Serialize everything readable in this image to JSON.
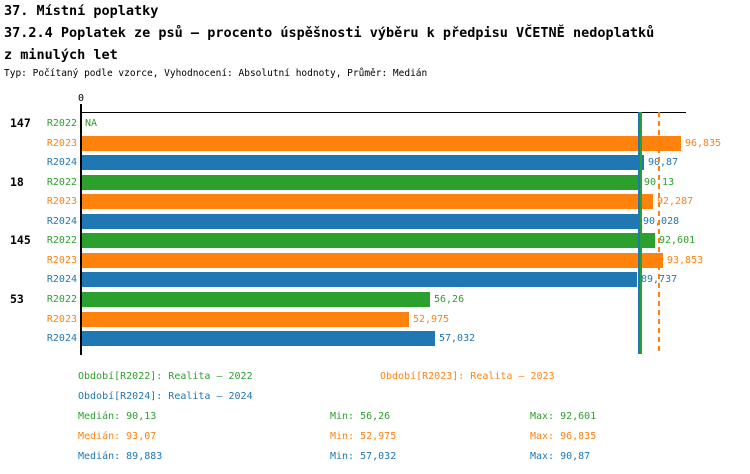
{
  "header": {
    "title_line1": "37. Místní poplatky",
    "title_line2": "37.2.4 Poplatek ze psů – procento úspěšnosti výběru k předpisu VČETNĚ nedoplatků",
    "title_line3": "z minulých let",
    "subtitle": "Typ: Počítaný podle vzorce, Vyhodnocení: Absolutní hodnoty, Průměr: Medián"
  },
  "colors": {
    "R2022": "#2ca02c",
    "R2023": "#ff820d",
    "R2024": "#1f77b4",
    "axis": "#000000"
  },
  "chart_data": {
    "type": "bar",
    "orientation": "horizontal",
    "title": "37.2.4 Poplatek ze psů – procento úspěšnosti výběru k předpisu VČETNĚ nedoplatků z minulých let",
    "x_axis": {
      "origin_tick_label": "0",
      "min": 0,
      "max": 97.6,
      "grid": false
    },
    "series": [
      "R2022",
      "R2023",
      "R2024"
    ],
    "groups": [
      {
        "label": "147",
        "values": [
          null,
          96.835,
          90.87
        ],
        "value_labels": [
          "NA",
          "96,835",
          "90,87"
        ]
      },
      {
        "label": "18",
        "values": [
          90.13,
          92.287,
          90.028
        ],
        "value_labels": [
          "90,13",
          "92,287",
          "90,028"
        ]
      },
      {
        "label": "145",
        "values": [
          92.601,
          93.853,
          89.737
        ],
        "value_labels": [
          "92,601",
          "93,853",
          "89,737"
        ]
      },
      {
        "label": "53",
        "values": [
          56.26,
          52.975,
          57.032
        ],
        "value_labels": [
          "56,26",
          "52,975",
          "57,032"
        ]
      }
    ],
    "median_lines": [
      {
        "series": "R2022",
        "value": 90.13,
        "style": "solid"
      },
      {
        "series": "R2023",
        "value": 93.07,
        "style": "dashed"
      },
      {
        "series": "R2024",
        "value": 89.883,
        "style": "solid"
      }
    ],
    "summary": {
      "R2022": {
        "median": 90.13,
        "min": 56.26,
        "max": 92.601
      },
      "R2023": {
        "median": 93.07,
        "min": 52.975,
        "max": 96.835
      },
      "R2024": {
        "median": 89.883,
        "min": 57.032,
        "max": 90.87
      }
    }
  },
  "legend": [
    {
      "series": "R2022",
      "label": "Období[R2022]: Realita – 2022"
    },
    {
      "series": "R2023",
      "label": "Období[R2023]: Realita – 2023"
    },
    {
      "series": "R2024",
      "label": "Období[R2024]: Realita – 2024"
    }
  ],
  "stats": [
    {
      "series": "R2022",
      "median": "Medián: 90,13",
      "min": "Min: 56,26",
      "max": "Max: 92,601"
    },
    {
      "series": "R2023",
      "median": "Medián: 93,07",
      "min": "Min: 52,975",
      "max": "Max: 96,835"
    },
    {
      "series": "R2024",
      "median": "Medián: 89,883",
      "min": "Min: 57,032",
      "max": "Max: 90,87"
    }
  ]
}
